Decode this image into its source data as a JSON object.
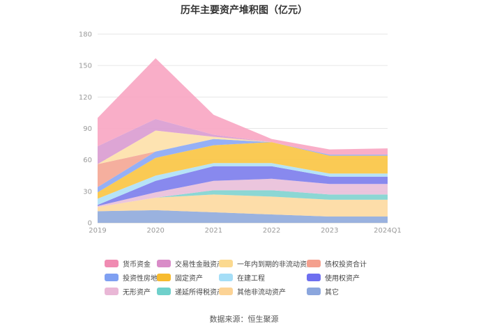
{
  "title": "历年主要资产堆积图（亿元）",
  "source": "数据来源：恒生聚源",
  "chart_data": {
    "type": "area",
    "stacked": true,
    "title": "历年主要资产堆积图（亿元）",
    "categories": [
      "2019",
      "2020",
      "2021",
      "2022",
      "2023",
      "2024Q1"
    ],
    "ylim": [
      0,
      180
    ],
    "yticks": [
      0,
      30,
      60,
      90,
      120,
      150,
      180
    ],
    "grid": true,
    "legend_position": "bottom",
    "series": [
      {
        "name": "其它",
        "color": "#8faadc",
        "values": [
          11,
          12,
          10,
          8,
          6,
          6
        ]
      },
      {
        "name": "其他非流动资产",
        "color": "#fdd9a0",
        "values": [
          4,
          12,
          17,
          17,
          16,
          16
        ]
      },
      {
        "name": "递延所得税资产",
        "color": "#7fd3cf",
        "values": [
          0,
          0,
          4,
          6,
          5,
          5
        ]
      },
      {
        "name": "无形资产",
        "color": "#e9bfd9",
        "values": [
          1,
          5,
          9,
          11,
          10,
          10
        ]
      },
      {
        "name": "使用权资产",
        "color": "#7b7cec",
        "values": [
          1,
          11,
          14,
          12,
          7,
          7
        ]
      },
      {
        "name": "在建工程",
        "color": "#aee0f6",
        "values": [
          6,
          5,
          3,
          3,
          3,
          3
        ]
      },
      {
        "name": "固定资产",
        "color": "#f9c441",
        "values": [
          6,
          17,
          17,
          20,
          17,
          17
        ]
      },
      {
        "name": "投资性房地产",
        "color": "#8aa7f5",
        "values": [
          5,
          6,
          6,
          0,
          1,
          1
        ]
      },
      {
        "name": "债权投资合计",
        "color": "#f4a693",
        "values": [
          22,
          0,
          0,
          0,
          0,
          0
        ]
      },
      {
        "name": "一年内到期的非流动资产",
        "color": "#fde0a8",
        "values": [
          0,
          20,
          2,
          0,
          0,
          0
        ]
      },
      {
        "name": "交易性金融资产",
        "color": "#d99bd0",
        "values": [
          17,
          11,
          2,
          0,
          0,
          0
        ]
      },
      {
        "name": "货币资金",
        "color": "#f8a5c2",
        "values": [
          27,
          58,
          19,
          3,
          5,
          6
        ]
      }
    ]
  },
  "legend": [
    {
      "label": "货币资金",
      "color": "#f08bb2"
    },
    {
      "label": "交易性金融资产",
      "color": "#d98cc8"
    },
    {
      "label": "一年内到期的非流动资产",
      "color": "#fbd98f"
    },
    {
      "label": "债权投资合计",
      "color": "#f4a08e"
    },
    {
      "label": "投资性房地产",
      "color": "#7fa0f2"
    },
    {
      "label": "固定资产",
      "color": "#f7bb2f"
    },
    {
      "label": "在建工程",
      "color": "#a5def7"
    },
    {
      "label": "使用权资产",
      "color": "#6e6ff0"
    },
    {
      "label": "无形资产",
      "color": "#e9b7d6"
    },
    {
      "label": "递延所得税资产",
      "color": "#6fd0cb"
    },
    {
      "label": "其他非流动资产",
      "color": "#fcd395"
    },
    {
      "label": "其它",
      "color": "#8ba6dd"
    }
  ]
}
